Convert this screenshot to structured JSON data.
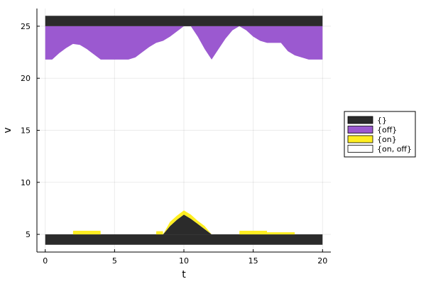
{
  "chart_data": {
    "type": "area",
    "title": "",
    "xlabel": "t",
    "ylabel": "v",
    "xlim": [
      -0.6,
      20.6
    ],
    "ylim": [
      3.3,
      26.7
    ],
    "xticks": [
      0,
      5,
      10,
      15,
      20
    ],
    "yticks": [
      5,
      10,
      15,
      20,
      25
    ],
    "grid": true,
    "legend_position": "right",
    "colors": {
      "{}": "#2b2b2b",
      "{off}": "#9b59d0",
      "{on}": "#ffee22",
      "{on, off}": "#ffffff"
    },
    "legend": [
      "{}",
      "{off}",
      "{on}",
      "{on, off}"
    ],
    "bands": {
      "empty_bottom": {
        "y0": 4.0,
        "y1": 5.0
      },
      "empty_top": {
        "y0": 25.0,
        "y1": 26.0
      }
    },
    "series": [
      {
        "name": "{}",
        "x": [
          8.5,
          9.0,
          9.5,
          10.0,
          10.5,
          11.0,
          11.5,
          12.0
        ],
        "y0": [
          5.0,
          5.0,
          5.0,
          5.0,
          5.0,
          5.0,
          5.0,
          5.0
        ],
        "y1": [
          5.0,
          5.8,
          6.4,
          6.9,
          6.5,
          6.0,
          5.5,
          5.0
        ]
      },
      {
        "name": "{on}",
        "x": [
          8.5,
          9.0,
          9.5,
          10.0,
          10.5,
          11.0,
          11.5,
          12.0
        ],
        "y0": [
          5.0,
          5.8,
          6.4,
          6.9,
          6.5,
          6.0,
          5.5,
          5.0
        ],
        "y1": [
          5.0,
          6.2,
          6.8,
          7.3,
          6.9,
          6.3,
          5.8,
          5.0
        ]
      },
      {
        "name": "{on}",
        "x": [
          2.0,
          2.01,
          3.99,
          4.0
        ],
        "y0": [
          5.0,
          5.0,
          5.0,
          5.0
        ],
        "y1": [
          5.0,
          5.35,
          5.35,
          5.0
        ]
      },
      {
        "name": "{on}",
        "x": [
          8.0,
          8.01,
          8.49,
          8.5
        ],
        "y0": [
          5.0,
          5.0,
          5.0,
          5.0
        ],
        "y1": [
          5.0,
          5.3,
          5.3,
          5.0
        ]
      },
      {
        "name": "{on}",
        "x": [
          14.0,
          14.01,
          15.99,
          16.0,
          17.99,
          18.0
        ],
        "y0": [
          5.0,
          5.0,
          5.0,
          5.0,
          5.0,
          5.0
        ],
        "y1": [
          5.0,
          5.35,
          5.35,
          5.2,
          5.2,
          5.0
        ]
      },
      {
        "name": "{off}",
        "x": [
          0.0,
          0.5,
          1.0,
          1.5,
          2.0,
          2.5,
          3.0,
          3.5,
          4.0,
          5.0,
          6.0,
          6.5,
          7.0,
          7.5,
          8.0,
          8.5,
          9.0,
          9.5,
          10.0,
          10.5,
          11.0,
          11.5,
          12.0,
          12.5,
          13.0,
          13.5,
          14.0,
          14.5,
          15.0,
          15.5,
          16.0,
          17.0,
          17.5,
          18.0,
          19.0,
          20.0
        ],
        "y0": [
          21.8,
          21.8,
          22.4,
          22.9,
          23.3,
          23.2,
          22.8,
          22.3,
          21.8,
          21.8,
          21.8,
          22.0,
          22.5,
          23.0,
          23.4,
          23.6,
          24.0,
          24.5,
          25.0,
          25.0,
          24.0,
          22.8,
          21.8,
          22.8,
          23.8,
          24.6,
          25.0,
          24.6,
          24.0,
          23.6,
          23.4,
          23.4,
          22.6,
          22.2,
          21.8,
          21.8
        ],
        "y1": [
          25.0,
          25.0,
          25.0,
          25.0,
          25.0,
          25.0,
          25.0,
          25.0,
          25.0,
          25.0,
          25.0,
          25.0,
          25.0,
          25.0,
          25.0,
          25.0,
          25.0,
          25.0,
          25.0,
          25.0,
          25.0,
          25.0,
          25.0,
          25.0,
          25.0,
          25.0,
          25.0,
          25.0,
          25.0,
          25.0,
          25.0,
          25.0,
          25.0,
          25.0,
          25.0,
          25.0
        ]
      }
    ]
  }
}
